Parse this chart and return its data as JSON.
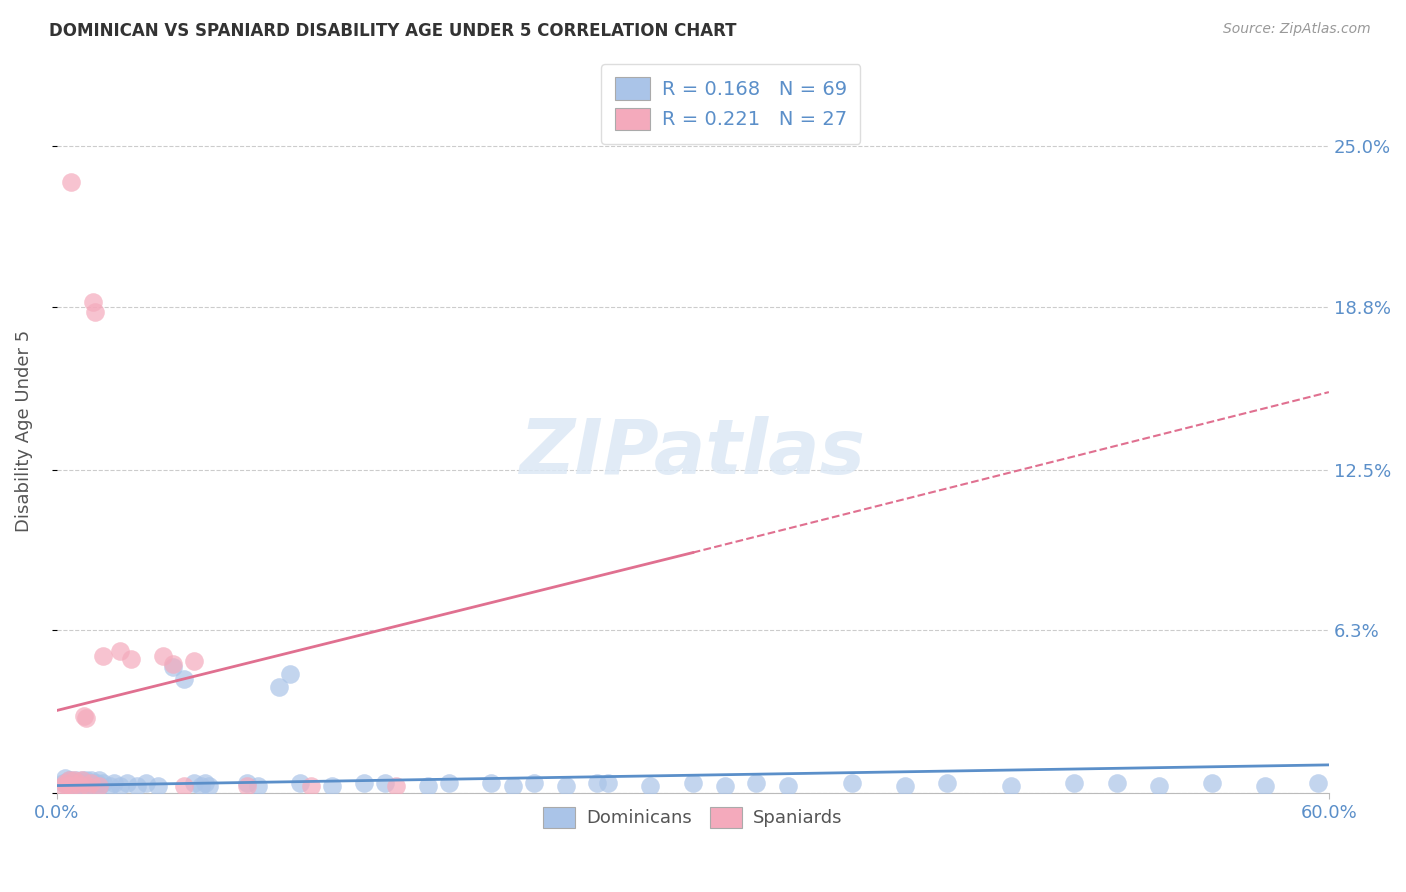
{
  "title": "DOMINICAN VS SPANIARD DISABILITY AGE UNDER 5 CORRELATION CHART",
  "source": "Source: ZipAtlas.com",
  "ylabel": "Disability Age Under 5",
  "xlim": [
    0.0,
    0.6
  ],
  "ylim": [
    0.0,
    0.28
  ],
  "ytick_positions": [
    0.0,
    0.063,
    0.125,
    0.188,
    0.25
  ],
  "ytick_labels": [
    "",
    "6.3%",
    "12.5%",
    "18.8%",
    "25.0%"
  ],
  "legend_R1": "0.168",
  "legend_N1": "69",
  "legend_R2": "0.221",
  "legend_N2": "27",
  "dominican_color": "#aac4e8",
  "spaniard_color": "#f4aabc",
  "trend_dominican_color": "#5b8fc9",
  "trend_spaniard_color": "#e07090",
  "background": "#ffffff",
  "grid_color": "#cccccc",
  "dom_trend_x0": 0.0,
  "dom_trend_y0": 0.003,
  "dom_trend_x1": 0.6,
  "dom_trend_y1": 0.011,
  "spa_trend_x0": 0.0,
  "spa_trend_y0": 0.032,
  "spa_trend_x1": 0.6,
  "spa_trend_y1": 0.155,
  "spa_trend_dash_x0": 0.3,
  "spa_trend_dash_y0": 0.093,
  "spa_trend_dash_x1": 0.6,
  "spa_trend_dash_y1": 0.155,
  "dom_x": [
    0.003,
    0.004,
    0.005,
    0.006,
    0.006,
    0.007,
    0.007,
    0.008,
    0.009,
    0.01,
    0.01,
    0.011,
    0.012,
    0.012,
    0.013,
    0.014,
    0.015,
    0.015,
    0.016,
    0.017,
    0.018,
    0.019,
    0.02,
    0.02,
    0.022,
    0.025,
    0.027,
    0.03,
    0.033,
    0.038,
    0.042,
    0.048,
    0.055,
    0.06,
    0.065,
    0.068,
    0.07,
    0.072,
    0.09,
    0.095,
    0.105,
    0.11,
    0.115,
    0.13,
    0.145,
    0.155,
    0.175,
    0.185,
    0.205,
    0.215,
    0.225,
    0.24,
    0.255,
    0.26,
    0.28,
    0.3,
    0.315,
    0.33,
    0.345,
    0.375,
    0.4,
    0.42,
    0.45,
    0.48,
    0.5,
    0.52,
    0.545,
    0.57,
    0.595
  ],
  "dom_y": [
    0.004,
    0.006,
    0.004,
    0.005,
    0.003,
    0.005,
    0.003,
    0.004,
    0.005,
    0.004,
    0.003,
    0.004,
    0.005,
    0.003,
    0.004,
    0.005,
    0.004,
    0.003,
    0.005,
    0.004,
    0.003,
    0.004,
    0.005,
    0.003,
    0.004,
    0.003,
    0.004,
    0.003,
    0.004,
    0.003,
    0.004,
    0.003,
    0.049,
    0.044,
    0.004,
    0.003,
    0.004,
    0.003,
    0.004,
    0.003,
    0.041,
    0.046,
    0.004,
    0.003,
    0.004,
    0.004,
    0.003,
    0.004,
    0.004,
    0.003,
    0.004,
    0.003,
    0.004,
    0.004,
    0.003,
    0.004,
    0.003,
    0.004,
    0.003,
    0.004,
    0.003,
    0.004,
    0.003,
    0.004,
    0.004,
    0.003,
    0.004,
    0.003,
    0.004
  ],
  "spa_x": [
    0.003,
    0.004,
    0.005,
    0.006,
    0.007,
    0.007,
    0.008,
    0.01,
    0.011,
    0.012,
    0.013,
    0.014,
    0.015,
    0.016,
    0.017,
    0.018,
    0.02,
    0.022,
    0.03,
    0.035,
    0.05,
    0.055,
    0.06,
    0.065,
    0.09,
    0.12,
    0.16
  ],
  "spa_y": [
    0.003,
    0.004,
    0.003,
    0.005,
    0.236,
    0.003,
    0.005,
    0.004,
    0.003,
    0.005,
    0.03,
    0.029,
    0.003,
    0.004,
    0.19,
    0.186,
    0.003,
    0.053,
    0.055,
    0.052,
    0.053,
    0.05,
    0.003,
    0.051,
    0.003,
    0.003,
    0.003
  ]
}
